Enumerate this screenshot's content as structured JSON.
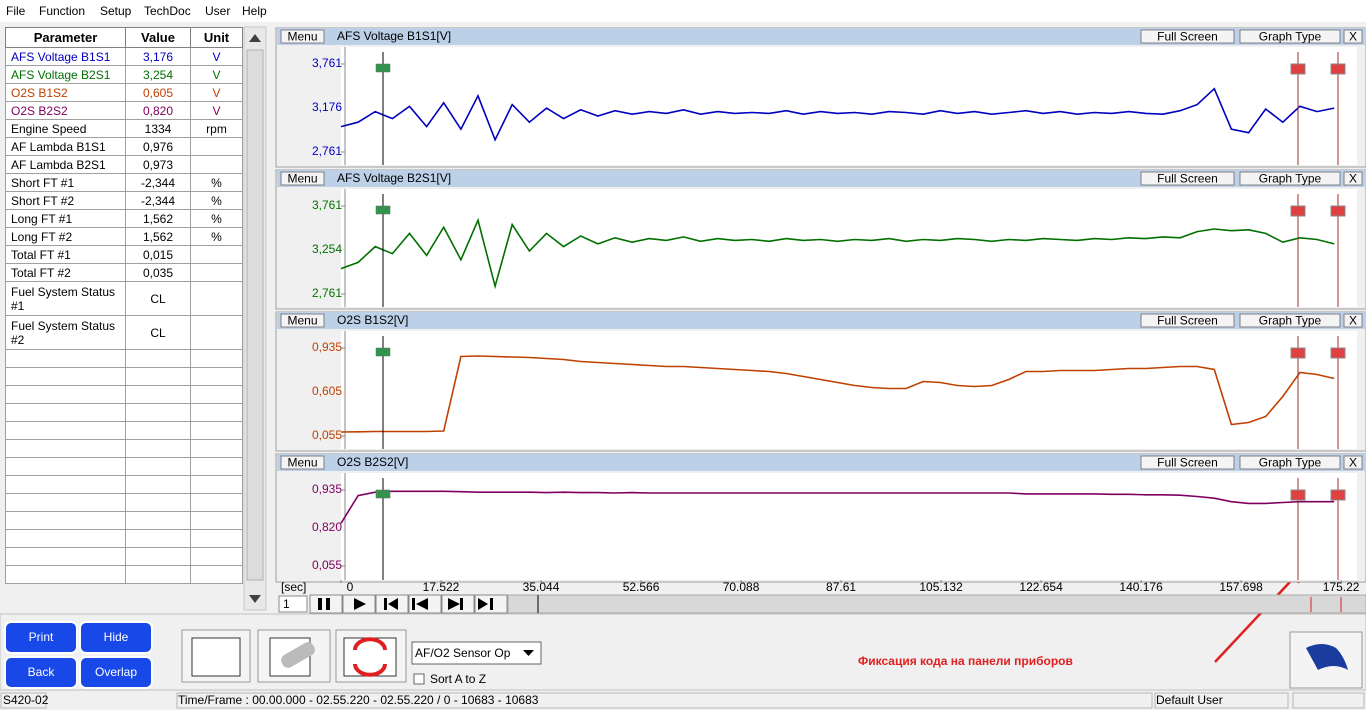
{
  "menu": [
    "File",
    "Function",
    "Setup",
    "TechDoc",
    "User",
    "Help"
  ],
  "table": {
    "headers": [
      "Parameter",
      "Value",
      "Unit"
    ],
    "rows": [
      {
        "name": "AFS Voltage B1S1",
        "value": "3,176",
        "unit": "V",
        "color": "#0000c0"
      },
      {
        "name": "AFS Voltage B2S1",
        "value": "3,254",
        "unit": "V",
        "color": "#007000"
      },
      {
        "name": "O2S B1S2",
        "value": "0,605",
        "unit": "V",
        "color": "#c04000"
      },
      {
        "name": "O2S B2S2",
        "value": "0,820",
        "unit": "V",
        "color": "#800060"
      },
      {
        "name": "Engine Speed",
        "value": "1334",
        "unit": "rpm",
        "color": "#000000"
      },
      {
        "name": "AF Lambda B1S1",
        "value": "0,976",
        "unit": "",
        "color": "#000000"
      },
      {
        "name": "AF Lambda B2S1",
        "value": "0,973",
        "unit": "",
        "color": "#000000"
      },
      {
        "name": "Short FT #1",
        "value": "-2,344",
        "unit": "%",
        "color": "#000000"
      },
      {
        "name": "Short FT #2",
        "value": "-2,344",
        "unit": "%",
        "color": "#000000"
      },
      {
        "name": "Long FT #1",
        "value": "1,562",
        "unit": "%",
        "color": "#000000"
      },
      {
        "name": "Long FT #2",
        "value": "1,562",
        "unit": "%",
        "color": "#000000"
      },
      {
        "name": "Total FT #1",
        "value": "0,015",
        "unit": "",
        "color": "#000000"
      },
      {
        "name": "Total FT #2",
        "value": "0,035",
        "unit": "",
        "color": "#000000"
      },
      {
        "name": "Fuel System Status #1",
        "value": "CL",
        "unit": "",
        "color": "#000000"
      },
      {
        "name": "Fuel System Status #2",
        "value": "CL",
        "unit": "",
        "color": "#000000"
      }
    ]
  },
  "panel_buttons": {
    "menu": "Menu",
    "full_screen": "Full Screen",
    "graph_type": "Graph Type",
    "close": "X"
  },
  "time": {
    "label": "[sec]",
    "xlim": [
      0,
      178
    ],
    "xticks": [
      0,
      17.522,
      35.044,
      52.566,
      70.088,
      87.61,
      105.132,
      122.654,
      140.176,
      157.698,
      175.22
    ],
    "x": [
      0,
      3,
      6,
      9,
      12,
      15,
      18,
      21,
      24,
      27,
      30,
      33,
      36,
      39,
      42,
      45,
      48,
      51,
      54,
      57,
      60,
      63,
      66,
      69,
      72,
      75,
      78,
      81,
      84,
      87,
      90,
      93,
      96,
      99,
      102,
      105,
      108,
      111,
      114,
      117,
      120,
      123,
      126,
      129,
      132,
      135,
      138,
      141,
      144,
      147,
      150,
      153,
      156,
      159,
      162,
      165,
      168,
      171,
      174
    ],
    "frame": "1"
  },
  "graphs": [
    {
      "type": "line",
      "title": "AFS Voltage B1S1[V]",
      "color": "#0000c0",
      "ylim": [
        2.761,
        3.761
      ],
      "yticks": [
        {
          "value": 2.761,
          "label": "2,761"
        },
        {
          "value": 3.761,
          "label": "3,761"
        }
      ],
      "mid_label": "3,176",
      "values": [
        3.05,
        3.1,
        3.22,
        3.14,
        3.28,
        3.05,
        3.32,
        3.02,
        3.4,
        2.9,
        3.3,
        3.1,
        3.26,
        3.14,
        3.24,
        3.17,
        3.23,
        3.19,
        3.22,
        3.2,
        3.24,
        3.19,
        3.22,
        3.2,
        3.21,
        3.2,
        3.23,
        3.19,
        3.22,
        3.2,
        3.21,
        3.19,
        3.22,
        3.21,
        3.19,
        3.23,
        3.2,
        3.22,
        3.19,
        3.21,
        3.23,
        3.2,
        3.22,
        3.19,
        3.21,
        3.2,
        3.22,
        3.2,
        3.19,
        3.23,
        3.3,
        3.48,
        3.02,
        2.98,
        3.25,
        3.1,
        3.28,
        3.22,
        3.26
      ]
    },
    {
      "type": "line",
      "title": "AFS Voltage B2S1[V]",
      "color": "#007000",
      "ylim": [
        2.761,
        3.761
      ],
      "yticks": [
        {
          "value": 2.761,
          "label": "2,761"
        },
        {
          "value": 3.761,
          "label": "3,761"
        }
      ],
      "mid_label": "3,254",
      "values": [
        3.05,
        3.12,
        3.3,
        3.22,
        3.45,
        3.2,
        3.52,
        3.15,
        3.6,
        2.85,
        3.55,
        3.25,
        3.45,
        3.3,
        3.42,
        3.33,
        3.4,
        3.35,
        3.39,
        3.37,
        3.41,
        3.36,
        3.39,
        3.37,
        3.38,
        3.36,
        3.39,
        3.37,
        3.38,
        3.36,
        3.38,
        3.37,
        3.39,
        3.36,
        3.38,
        3.37,
        3.39,
        3.38,
        3.36,
        3.38,
        3.37,
        3.39,
        3.38,
        3.37,
        3.39,
        3.38,
        3.4,
        3.39,
        3.41,
        3.4,
        3.47,
        3.5,
        3.48,
        3.49,
        3.45,
        3.35,
        3.4,
        3.38,
        3.33
      ]
    },
    {
      "type": "line",
      "title": "O2S B1S2[V]",
      "color": "#c04000",
      "ylim": [
        0.055,
        0.935
      ],
      "yticks": [
        {
          "value": 0.055,
          "label": "0,055"
        },
        {
          "value": 0.935,
          "label": "0,935"
        }
      ],
      "mid_label": "0,605",
      "values": [
        0.095,
        0.097,
        0.1,
        0.1,
        0.1,
        0.1,
        0.105,
        0.85,
        0.855,
        0.85,
        0.845,
        0.84,
        0.83,
        0.82,
        0.8,
        0.79,
        0.78,
        0.77,
        0.76,
        0.75,
        0.75,
        0.74,
        0.73,
        0.72,
        0.71,
        0.7,
        0.68,
        0.65,
        0.62,
        0.59,
        0.56,
        0.54,
        0.53,
        0.53,
        0.6,
        0.59,
        0.56,
        0.55,
        0.56,
        0.62,
        0.7,
        0.7,
        0.71,
        0.71,
        0.71,
        0.72,
        0.73,
        0.73,
        0.74,
        0.75,
        0.75,
        0.72,
        0.17,
        0.19,
        0.25,
        0.45,
        0.69,
        0.67,
        0.63
      ]
    },
    {
      "type": "line",
      "title": "O2S B2S2[V]",
      "color": "#800060",
      "ylim": [
        0.055,
        0.935
      ],
      "yticks": [
        {
          "value": 0.055,
          "label": "0,055"
        },
        {
          "value": 0.935,
          "label": "0,935"
        }
      ],
      "mid_label": "0,820",
      "values": [
        0.55,
        0.87,
        0.91,
        0.92,
        0.92,
        0.92,
        0.92,
        0.915,
        0.91,
        0.91,
        0.91,
        0.91,
        0.905,
        0.91,
        0.905,
        0.905,
        0.9,
        0.905,
        0.9,
        0.9,
        0.9,
        0.9,
        0.9,
        0.9,
        0.9,
        0.9,
        0.9,
        0.9,
        0.9,
        0.9,
        0.9,
        0.9,
        0.9,
        0.9,
        0.9,
        0.9,
        0.9,
        0.9,
        0.9,
        0.9,
        0.89,
        0.89,
        0.89,
        0.89,
        0.89,
        0.885,
        0.885,
        0.88,
        0.88,
        0.875,
        0.86,
        0.84,
        0.8,
        0.78,
        0.78,
        0.79,
        0.8,
        0.8,
        0.8
      ]
    }
  ],
  "buttons": [
    "Print",
    "Hide",
    "Back",
    "Overlap"
  ],
  "dropdown": "AF/O2 Sensor Op",
  "sort_checkbox": "Sort A to Z",
  "annotation": "Фиксация кода на панели приборов",
  "status": [
    "S420-02",
    "Time/Frame : 00.00.000 - 02.55.220 - 02.55.220 / 0 - 10683 - 10683",
    "Default User"
  ]
}
